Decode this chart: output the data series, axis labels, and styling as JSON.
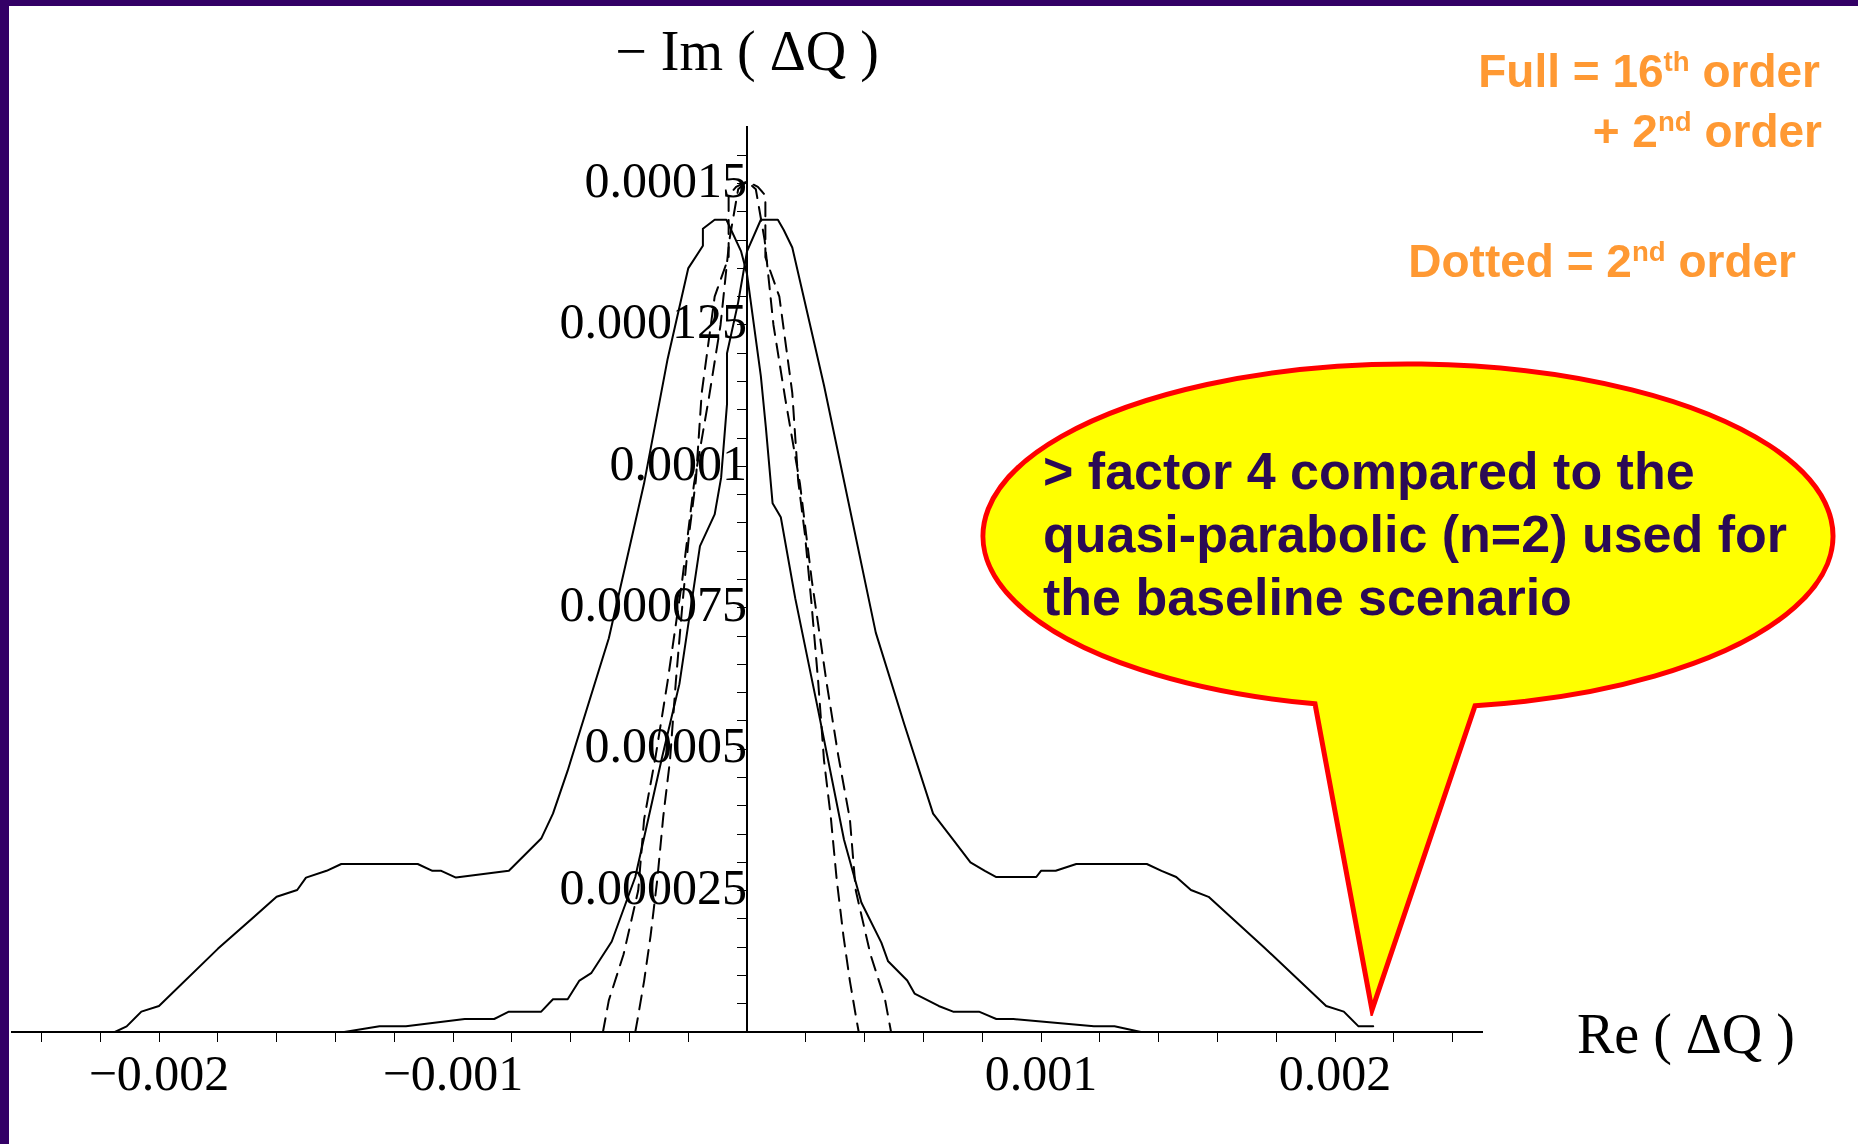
{
  "chart_data": {
    "type": "line",
    "xlabel": "Re ( ΔQ )",
    "ylabel": "− Im ( ΔQ )",
    "xlim": [
      -0.0025,
      0.0025
    ],
    "ylim": [
      0,
      0.00016
    ],
    "xticks": [
      {
        "value": -0.0024,
        "label": null
      },
      {
        "value": -0.0022,
        "label": null
      },
      {
        "value": -0.002,
        "label": "−0.002"
      },
      {
        "value": -0.0018,
        "label": null
      },
      {
        "value": -0.0016,
        "label": null
      },
      {
        "value": -0.0014,
        "label": null
      },
      {
        "value": -0.0012,
        "label": null
      },
      {
        "value": -0.001,
        "label": "−0.001"
      },
      {
        "value": -0.0008,
        "label": null
      },
      {
        "value": -0.0006,
        "label": null
      },
      {
        "value": -0.0004,
        "label": null
      },
      {
        "value": -0.0002,
        "label": null
      },
      {
        "value": 0.0002,
        "label": null
      },
      {
        "value": 0.0004,
        "label": null
      },
      {
        "value": 0.0006,
        "label": null
      },
      {
        "value": 0.0008,
        "label": null
      },
      {
        "value": 0.001,
        "label": "0.001"
      },
      {
        "value": 0.0012,
        "label": null
      },
      {
        "value": 0.0014,
        "label": null
      },
      {
        "value": 0.0016,
        "label": null
      },
      {
        "value": 0.0018,
        "label": null
      },
      {
        "value": 0.002,
        "label": "0.002"
      },
      {
        "value": 0.0022,
        "label": null
      },
      {
        "value": 0.0024,
        "label": null
      }
    ],
    "yticks": [
      {
        "value": 5e-06,
        "label": null
      },
      {
        "value": 1e-05,
        "label": null
      },
      {
        "value": 1.5e-05,
        "label": null
      },
      {
        "value": 2e-05,
        "label": null
      },
      {
        "value": 2.5e-05,
        "label": "0.000025"
      },
      {
        "value": 3e-05,
        "label": null
      },
      {
        "value": 3.5e-05,
        "label": null
      },
      {
        "value": 4e-05,
        "label": null
      },
      {
        "value": 4.5e-05,
        "label": null
      },
      {
        "value": 5e-05,
        "label": "0.00005"
      },
      {
        "value": 5.5e-05,
        "label": null
      },
      {
        "value": 6e-05,
        "label": null
      },
      {
        "value": 6.5e-05,
        "label": null
      },
      {
        "value": 7e-05,
        "label": null
      },
      {
        "value": 7.5e-05,
        "label": "0.000075"
      },
      {
        "value": 8e-05,
        "label": null
      },
      {
        "value": 8.5e-05,
        "label": null
      },
      {
        "value": 9e-05,
        "label": null
      },
      {
        "value": 9.5e-05,
        "label": null
      },
      {
        "value": 0.0001,
        "label": "0.0001"
      },
      {
        "value": 0.000105,
        "label": null
      },
      {
        "value": 0.00011,
        "label": null
      },
      {
        "value": 0.000115,
        "label": null
      },
      {
        "value": 0.00012,
        "label": null
      },
      {
        "value": 0.000125,
        "label": "0.000125"
      },
      {
        "value": 0.00013,
        "label": null
      },
      {
        "value": 0.000135,
        "label": null
      },
      {
        "value": 0.00014,
        "label": null
      },
      {
        "value": 0.000145,
        "label": null
      },
      {
        "value": 0.00015,
        "label": "0.00015"
      },
      {
        "value": 0.000155,
        "label": null
      }
    ],
    "series": [
      {
        "color": "#000000",
        "line_style": "solid",
        "x": [
          -0.00215,
          -0.00211,
          -0.00206,
          -0.002,
          -0.0018,
          -0.0016,
          -0.00153,
          -0.0015,
          -0.00143,
          -0.00138,
          -0.00112,
          -0.00107,
          -0.00104,
          -0.00099,
          -0.00081,
          -0.0007,
          -0.00066,
          -0.00061,
          -0.00047,
          -0.00035,
          -0.00027,
          -0.0002,
          -0.00015,
          -0.00015,
          -0.00011,
          -7e-05,
          -2e-05,
          0,
          4.7e-05,
          6.4e-05,
          8.7e-05,
          0.000115,
          0.000164,
          0.000242,
          0.00033,
          0.000389,
          0.000457,
          0.00048,
          0.000545,
          0.00057,
          0.000652,
          0.000701,
          0.000789,
          0.000848,
          0.000906,
          0.00118,
          0.00125,
          0.00134
        ],
        "values": [
          0,
          1e-06,
          3.6e-06,
          4.6e-06,
          1.47e-05,
          2.39e-05,
          2.51e-05,
          2.73e-05,
          2.85e-05,
          2.97e-05,
          2.97e-05,
          2.85e-05,
          2.85e-05,
          2.73e-05,
          2.85e-05,
          3.42e-05,
          3.86e-05,
          4.62e-05,
          6.96e-05,
          9.7e-05,
          0.000119,
          0.000135,
          0.000139,
          0.000142,
          0.0001436,
          0.0001436,
          0.000138,
          0.000134,
          0.000116,
          0.000107,
          9.35e-05,
          9.1e-05,
          7.67e-05,
          5.69e-05,
          3.4e-05,
          2.29e-05,
          1.58e-05,
          1.25e-05,
          9.1e-06,
          6.8e-06,
          4.6e-06,
          3.6e-06,
          3.6e-06,
          2.3e-06,
          2.3e-06,
          1e-06,
          1e-06,
          0
        ]
      },
      {
        "color": "#000000",
        "line_style": "solid",
        "x": [
          -0.00137,
          -0.00125,
          -0.00116,
          -0.00096,
          -0.00086,
          -0.00081,
          -0.0007,
          -0.00066,
          -0.00061,
          -0.00057,
          -0.00053,
          -0.00046,
          -0.00038,
          -0.00029,
          -0.00023,
          -0.00016,
          -0.00011,
          -8.8e-05,
          -6.8e-05,
          -6.8e-05,
          -3e-05,
          0,
          4.7e-05,
          0.000105,
          0.000125,
          0.000154,
          0.000262,
          0.000438,
          0.000535,
          0.000633,
          0.000701,
          0.00076,
          0.000809,
          0.000848,
          0.000984,
          0.001,
          0.00105,
          0.00112,
          0.00136,
          0.00141,
          0.00146,
          0.00151,
          0.00157,
          0.00176,
          0.00197,
          0.00203,
          0.00208,
          0.00213
        ],
        "values": [
          0,
          1e-06,
          1e-06,
          2.3e-06,
          2.3e-06,
          3.6e-06,
          3.6e-06,
          5.8e-06,
          5.8e-06,
          9.1e-06,
          1.04e-05,
          1.6e-05,
          2.74e-05,
          4.83e-05,
          6.15e-05,
          8.59e-05,
          9.15e-05,
          9.8e-05,
          0.000111,
          0.00012,
          0.000129,
          0.000138,
          0.0001436,
          0.0001436,
          0.0001418,
          0.0001387,
          0.0001143,
          7.06e-05,
          5.44e-05,
          3.86e-05,
          3.4e-05,
          3e-05,
          2.85e-05,
          2.74e-05,
          2.74e-05,
          2.85e-05,
          2.85e-05,
          2.97e-05,
          2.97e-05,
          2.85e-05,
          2.74e-05,
          2.51e-05,
          2.39e-05,
          1.49e-05,
          4.6e-06,
          3.6e-06,
          1e-06,
          1e-06
        ]
      },
      {
        "color": "#000000",
        "line_style": "dashed",
        "x": [
          -0.00038,
          -0.000373,
          -0.00035,
          -0.000328,
          -0.000305,
          -0.000285,
          -0.000262,
          -0.000242,
          -0.000219,
          -0.000197,
          -0.000174,
          -0.000154,
          -0.00011,
          -6.25e-05,
          -6.25e-05,
          -3.7e-05,
          0,
          3e-05,
          6e-05,
          9e-05,
          0.00013,
          0.00018,
          0.00022,
          0.00027,
          0.00031,
          0.00035,
          0.00037,
          0.00042,
          0.00047,
          0.00049
        ],
        "values": [
          0,
          2e-06,
          9e-06,
          1.7e-05,
          2.7e-05,
          3.8e-05,
          4.8e-05,
          6.2e-05,
          7.6e-05,
          8.8e-05,
          9.75e-05,
          0.000113,
          0.00013,
          0.000137,
          0.0001479,
          0.0001494,
          0.0001504,
          0.000149,
          0.00014,
          0.000125,
          0.000112,
          9.7e-05,
          8e-05,
          6.2e-05,
          4.9e-05,
          3.76e-05,
          2.5e-05,
          1.37e-05,
          5.6e-06,
          0
        ]
      },
      {
        "color": "#000000",
        "line_style": "dashed",
        "x": [
          -0.00049,
          -0.00047,
          -0.00042,
          -0.00037,
          -0.00035,
          -0.00031,
          -0.00027,
          -0.00022,
          -0.00018,
          -0.00013,
          -9e-05,
          -6e-05,
          -3e-05,
          0,
          3.7e-05,
          6.25e-05,
          6.25e-05,
          0.00011,
          0.000154,
          0.000174,
          0.000197,
          0.000219,
          0.000242,
          0.000262,
          0.000285,
          0.000305,
          0.000328,
          0.00035,
          0.000373,
          0.00038
        ],
        "values": [
          0,
          5.6e-06,
          1.37e-05,
          2.5e-05,
          3.76e-05,
          4.9e-05,
          6.2e-05,
          8e-05,
          9.7e-05,
          0.000112,
          0.000125,
          0.00014,
          0.000149,
          0.0001504,
          0.0001494,
          0.0001479,
          0.000137,
          0.00013,
          0.000113,
          9.75e-05,
          8.8e-05,
          7.6e-05,
          6.2e-05,
          4.8e-05,
          3.8e-05,
          2.7e-05,
          1.7e-05,
          9e-06,
          2e-06,
          0
        ]
      }
    ],
    "annotations": [
      "Full = 16$^{th}$ order",
      "+ 2$^{nd}$ order",
      "Dotted = 2$^{nd}$ order",
      "> factor 4 compared to the quasi-parabolic (n=2) used for the baseline scenario"
    ]
  }
}
